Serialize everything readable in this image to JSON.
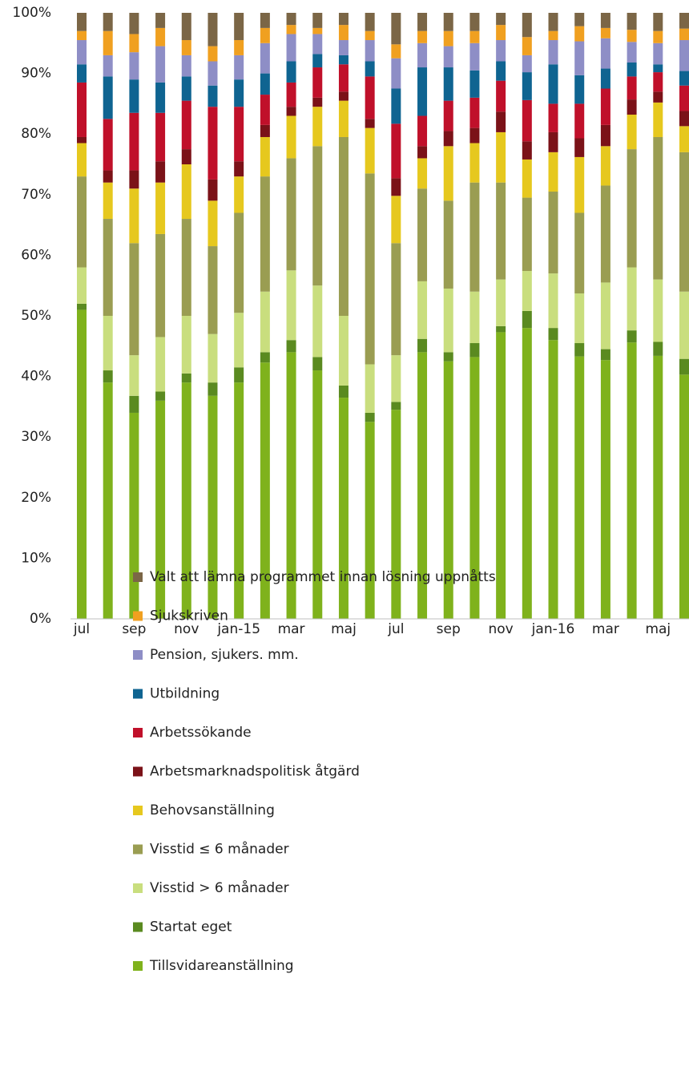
{
  "chart_data": {
    "type": "stacked_bar",
    "categories": [
      "jul",
      null,
      "sep",
      null,
      "nov",
      null,
      "jan-15",
      null,
      "mar",
      null,
      "maj",
      null,
      "jul",
      null,
      "sep",
      null,
      "nov",
      null,
      "jan-16",
      null,
      "mar",
      null,
      "maj",
      null
    ],
    "series": [
      {
        "name": "Tillsvidareanställning",
        "color": "#7fb21c",
        "values": [
          51,
          39,
          34,
          36,
          39,
          36.8,
          39,
          42.3,
          44,
          41,
          36.5,
          32.5,
          34.5,
          44,
          42.5,
          43.2,
          47.3,
          48,
          46,
          43.3,
          42.7,
          45.6,
          43.4,
          40.3
        ]
      },
      {
        "name": "Startat eget",
        "color": "#5a8a20",
        "values": [
          1,
          2,
          2.8,
          1.5,
          1.5,
          2.2,
          2.5,
          1.7,
          2,
          2.2,
          2,
          1.5,
          1.3,
          2.2,
          1.5,
          2.3,
          1,
          2.8,
          2,
          2.2,
          1.8,
          2,
          2.3,
          2.6
        ]
      },
      {
        "name": "Visstid > 6 månader",
        "color": "#c9de7e",
        "values": [
          6,
          9,
          6.7,
          9,
          9.5,
          8,
          9,
          10,
          11.5,
          11.8,
          11.5,
          8,
          7.7,
          9.5,
          10.5,
          8.5,
          7.7,
          6.6,
          9,
          8.2,
          11,
          10.4,
          10.3,
          11.1
        ]
      },
      {
        "name": "Visstid ≤ 6 månader",
        "color": "#9a9d52",
        "values": [
          15,
          16,
          18.5,
          17,
          16,
          14.5,
          16.5,
          19,
          18.5,
          23,
          29.5,
          31.5,
          18.5,
          15.3,
          14.5,
          18,
          16,
          12.1,
          13.5,
          13.3,
          16,
          19.5,
          23.5,
          23
        ]
      },
      {
        "name": "Behovsanställning",
        "color": "#e6c81e",
        "values": [
          5.5,
          6,
          9,
          8.5,
          9,
          7.5,
          6,
          6.5,
          7,
          6.5,
          6,
          7.5,
          7.8,
          5,
          9,
          6.5,
          8.3,
          6.3,
          6.5,
          9.2,
          6.5,
          5.7,
          5.7,
          4.3
        ]
      },
      {
        "name": "Arbetsmarknadspolitisk åtgärd",
        "color": "#7b1218",
        "values": [
          1,
          2,
          3,
          3.5,
          2.5,
          3.5,
          2.5,
          2,
          1.5,
          1.5,
          1.5,
          1.5,
          2.9,
          2,
          2.5,
          2.5,
          3.4,
          3,
          3.3,
          3.1,
          3.5,
          2.5,
          1.8,
          2.5
        ]
      },
      {
        "name": "Arbetssökande",
        "color": "#c0102a",
        "values": [
          9,
          8.5,
          9.5,
          8,
          8,
          12,
          9,
          5,
          4,
          5,
          4.5,
          7,
          9,
          5,
          5,
          5,
          5.1,
          6.8,
          4.7,
          5.7,
          6,
          3.8,
          3.2,
          4.2
        ]
      },
      {
        "name": "Utbildning",
        "color": "#0f6491",
        "values": [
          3,
          7,
          5.5,
          5,
          4,
          3.5,
          4.5,
          3.5,
          3.5,
          2.2,
          1.5,
          2.5,
          5.8,
          8,
          5.5,
          4.5,
          3.2,
          4.6,
          6.5,
          4.7,
          3.3,
          2.3,
          1.3,
          2.4
        ]
      },
      {
        "name": "Pension, sjukers. mm.",
        "color": "#8e8ec6",
        "values": [
          4,
          3.5,
          4.5,
          6,
          3.5,
          4,
          4,
          5,
          4.5,
          3.3,
          2.5,
          3.5,
          5,
          4,
          3.5,
          4.5,
          3.5,
          2.8,
          4,
          5.6,
          5,
          3.4,
          3.5,
          5.1
        ]
      },
      {
        "name": "Sjukskriven",
        "color": "#f0a020",
        "values": [
          1.5,
          4,
          3,
          3,
          2.5,
          2.5,
          2.5,
          2.5,
          1.5,
          1,
          2.5,
          1.5,
          2.3,
          2,
          2.5,
          2,
          2.5,
          3,
          1.5,
          2.5,
          1.7,
          2,
          2,
          1.9
        ]
      },
      {
        "name": "Valt att lämna programmet innan lösning uppnåtts",
        "color": "#7b6646",
        "values": [
          3,
          3,
          3.5,
          2.5,
          4.5,
          5.5,
          4.5,
          2.5,
          2,
          2.5,
          2,
          3,
          5.2,
          3,
          3,
          3,
          2,
          4,
          3,
          2.2,
          2.5,
          2.8,
          3,
          2.6
        ]
      }
    ],
    "ylim": [
      0,
      100
    ],
    "yticks": [
      {
        "value": 0,
        "label": "0%"
      },
      {
        "value": 10,
        "label": "10%"
      },
      {
        "value": 20,
        "label": "20%"
      },
      {
        "value": 30,
        "label": "30%"
      },
      {
        "value": 40,
        "label": "40%"
      },
      {
        "value": 50,
        "label": "50%"
      },
      {
        "value": 60,
        "label": "60%"
      },
      {
        "value": 70,
        "label": "70%"
      },
      {
        "value": 80,
        "label": "80%"
      },
      {
        "value": 90,
        "label": "90%"
      },
      {
        "value": 100,
        "label": "100%"
      }
    ],
    "grid": false,
    "legend": "bottom"
  }
}
